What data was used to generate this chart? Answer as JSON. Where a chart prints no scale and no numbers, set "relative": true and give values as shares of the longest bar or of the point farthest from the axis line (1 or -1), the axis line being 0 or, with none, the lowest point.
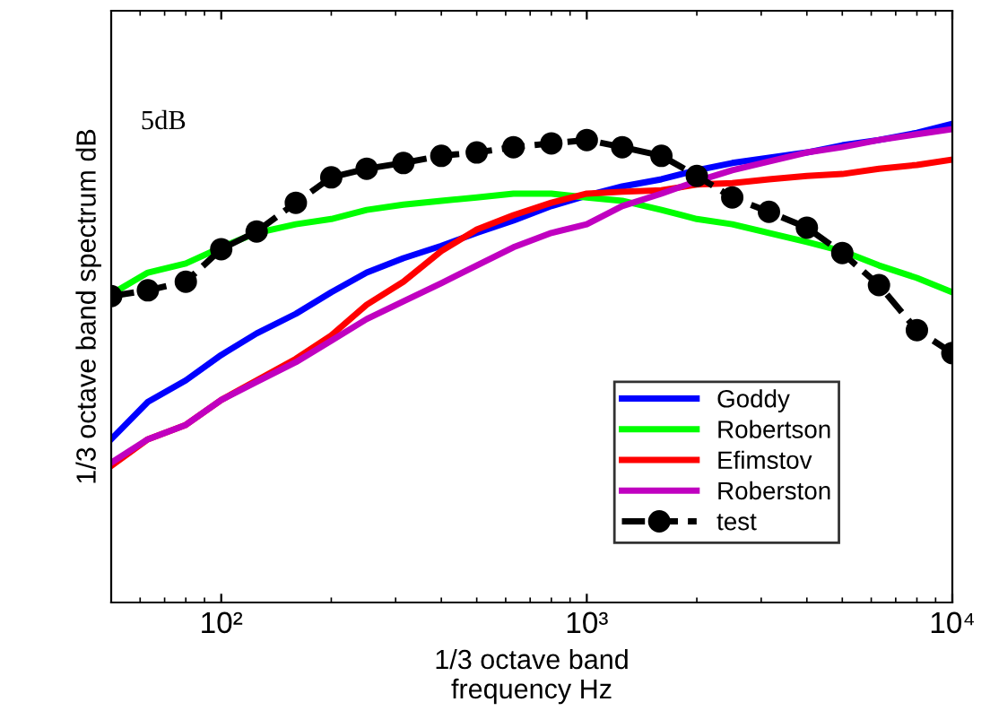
{
  "chart_data": {
    "type": "line",
    "relative": true,
    "xlabel": "1/3 octave band\nfrequency Hz",
    "ylabel": "1/3 octave band spectrum dB",
    "annotations": [
      "5dB"
    ],
    "x": [
      50,
      63,
      80,
      100,
      125,
      160,
      200,
      250,
      315,
      400,
      500,
      630,
      800,
      1000,
      1250,
      1600,
      2000,
      2500,
      3150,
      4000,
      5000,
      6300,
      8000,
      10000
    ],
    "log": "x",
    "xlim": [
      50,
      10000
    ],
    "xticks": [
      {
        "value": 100,
        "label": "10²"
      },
      {
        "value": 1000,
        "label": "10³"
      },
      {
        "value": 10000,
        "label": "10⁴"
      }
    ],
    "grid": false,
    "legend": "bottom right",
    "series": [
      {
        "name": "Goddy",
        "color": "#0000ff",
        "marker": "none",
        "line_style": "solid",
        "values": [
          0.341,
          0.419,
          0.464,
          0.517,
          0.562,
          0.603,
          0.648,
          0.689,
          0.719,
          0.745,
          0.772,
          0.798,
          0.828,
          0.85,
          0.869,
          0.884,
          0.903,
          0.918,
          0.929,
          0.94,
          0.955,
          0.966,
          0.981,
          1.0
        ]
      },
      {
        "name": "Robertson",
        "color": "#00ff00",
        "marker": "none",
        "line_style": "solid",
        "values": [
          0.644,
          0.689,
          0.708,
          0.742,
          0.772,
          0.79,
          0.801,
          0.82,
          0.831,
          0.839,
          0.846,
          0.854,
          0.854,
          0.846,
          0.839,
          0.82,
          0.801,
          0.79,
          0.772,
          0.753,
          0.734,
          0.704,
          0.678,
          0.648
        ]
      },
      {
        "name": "Efimstov",
        "color": "#ff0000",
        "marker": "none",
        "line_style": "solid",
        "values": [
          0.285,
          0.341,
          0.371,
          0.423,
          0.464,
          0.509,
          0.558,
          0.622,
          0.67,
          0.734,
          0.779,
          0.809,
          0.835,
          0.854,
          0.858,
          0.861,
          0.873,
          0.876,
          0.884,
          0.891,
          0.895,
          0.906,
          0.914,
          0.925
        ]
      },
      {
        "name": "Roberston",
        "color": "#c000c0",
        "marker": "none",
        "line_style": "solid",
        "values": [
          0.292,
          0.341,
          0.371,
          0.423,
          0.461,
          0.502,
          0.547,
          0.592,
          0.629,
          0.667,
          0.704,
          0.742,
          0.772,
          0.79,
          0.828,
          0.854,
          0.88,
          0.903,
          0.921,
          0.94,
          0.951,
          0.966,
          0.978,
          0.989
        ]
      },
      {
        "name": "test",
        "color": "#000000",
        "marker": "circle",
        "line_style": "dashed",
        "values": [
          0.64,
          0.652,
          0.67,
          0.738,
          0.775,
          0.835,
          0.888,
          0.906,
          0.918,
          0.933,
          0.94,
          0.951,
          0.959,
          0.966,
          0.951,
          0.933,
          0.891,
          0.846,
          0.816,
          0.783,
          0.73,
          0.663,
          0.569,
          0.521
        ]
      }
    ]
  }
}
